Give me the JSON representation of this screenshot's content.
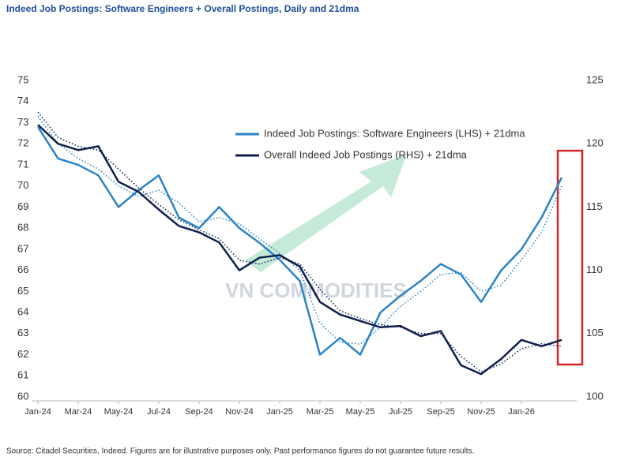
{
  "chart_data": {
    "type": "line",
    "title": "Indeed Job Postings: Software Engineers + Overall Postings, Daily and 21dma",
    "source": "Source: Citadel Securities, Indeed. Figures are for illustrative purposes only. Past performance figures do not guarantee future results.",
    "watermark": "VN COMMODITIES",
    "categories": [
      "Jan-24",
      null,
      "Mar-24",
      null,
      "May-24",
      null,
      "Jul-24",
      null,
      "Sep-24",
      null,
      "Nov-24",
      null,
      "Jan-25",
      null,
      "Mar-25",
      null,
      "May-25",
      null,
      "Jul-25",
      null,
      "Sep-25",
      null,
      "Nov-25",
      null,
      "Jan-26",
      null,
      null
    ],
    "ylim": [
      60,
      75
    ],
    "yticks": [
      60,
      61,
      62,
      63,
      64,
      65,
      66,
      67,
      68,
      69,
      70,
      71,
      72,
      73,
      74,
      75
    ],
    "y2lim": [
      100,
      125
    ],
    "y2ticks": [
      100,
      105,
      110,
      115,
      120,
      125
    ],
    "grid": false,
    "series": [
      {
        "name": "Indeed Job Postings: Software Engineers (LHS) + 21dma",
        "color": "#2b83c6",
        "axis": "y",
        "values": [
          72.8,
          71.3,
          71.0,
          70.5,
          69.0,
          69.8,
          70.5,
          68.5,
          68.0,
          69.0,
          68.0,
          67.3,
          66.5,
          65.5,
          62.0,
          62.8,
          62.0,
          64.0,
          64.8,
          65.5,
          66.3,
          65.8,
          64.5,
          66.0,
          67.0,
          68.5,
          70.4
        ],
        "ma_values": [
          73.3,
          72.0,
          71.3,
          70.8,
          70.0,
          69.5,
          69.8,
          69.2,
          68.3,
          68.5,
          68.2,
          67.5,
          66.8,
          66.0,
          63.5,
          62.6,
          62.5,
          63.3,
          64.3,
          65.0,
          65.8,
          65.9,
          65.0,
          65.3,
          66.5,
          67.8,
          70.0
        ]
      },
      {
        "name": "Overall Indeed Job Postings (RHS) + 21dma",
        "color": "#0f1f4e",
        "axis": "y2",
        "values": [
          121.5,
          120.0,
          119.5,
          119.8,
          117.0,
          116.2,
          114.8,
          113.5,
          113.0,
          112.2,
          110.0,
          111.0,
          111.2,
          110.3,
          107.5,
          106.5,
          106.0,
          105.5,
          105.6,
          104.8,
          105.2,
          102.5,
          101.8,
          103.0,
          104.5,
          104.0,
          104.5
        ],
        "ma_values": [
          122.5,
          120.5,
          119.8,
          119.5,
          118.0,
          116.5,
          115.2,
          114.0,
          113.2,
          112.5,
          110.8,
          110.5,
          111.0,
          110.5,
          108.5,
          106.8,
          106.2,
          105.7,
          105.5,
          105.0,
          105.0,
          103.2,
          102.0,
          102.6,
          103.8,
          104.2,
          104.0
        ]
      }
    ]
  }
}
